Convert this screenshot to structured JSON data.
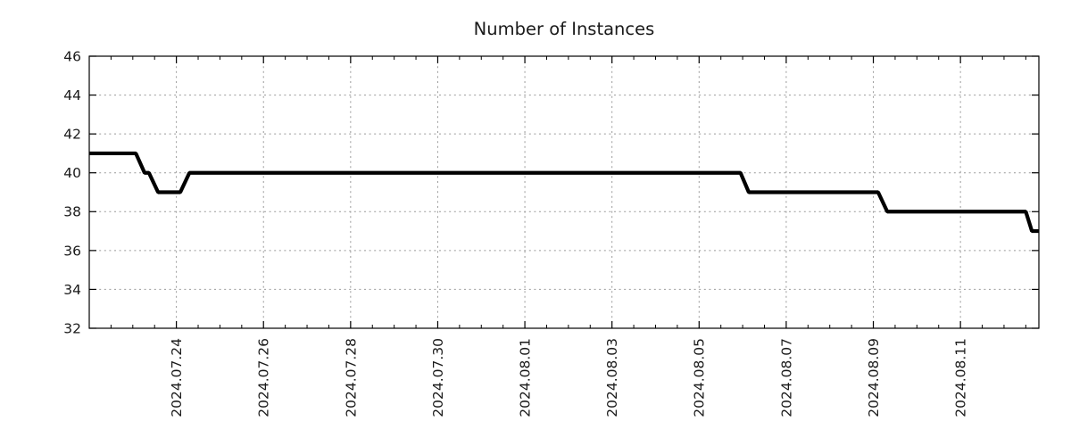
{
  "chart_data": {
    "type": "line",
    "title": "Number of Instances",
    "xlabel": "",
    "ylabel": "",
    "ylim": [
      32,
      46
    ],
    "yticks": [
      32,
      34,
      36,
      38,
      40,
      42,
      44,
      46
    ],
    "xlim_days": [
      0,
      21.8
    ],
    "xticks": [
      {
        "day": 2,
        "label": "2024.07.24"
      },
      {
        "day": 4,
        "label": "2024.07.26"
      },
      {
        "day": 6,
        "label": "2024.07.28"
      },
      {
        "day": 8,
        "label": "2024.07.30"
      },
      {
        "day": 10,
        "label": "2024.08.01"
      },
      {
        "day": 12,
        "label": "2024.08.03"
      },
      {
        "day": 14,
        "label": "2024.08.05"
      },
      {
        "day": 16,
        "label": "2024.08.07"
      },
      {
        "day": 18,
        "label": "2024.08.09"
      },
      {
        "day": 20,
        "label": "2024.08.11"
      }
    ],
    "minor_xtick_interval_days": 0.5,
    "grid": true,
    "legend": "none",
    "colors": {
      "line": "#000000",
      "grid": "#999999",
      "axis": "#000000",
      "text": "#1a1a1a",
      "background": "#ffffff"
    },
    "series": [
      {
        "name": "instances",
        "points": [
          [
            0.0,
            41
          ],
          [
            1.07,
            41
          ],
          [
            1.27,
            40
          ],
          [
            1.37,
            40
          ],
          [
            1.58,
            39
          ],
          [
            2.09,
            39
          ],
          [
            2.3,
            40
          ],
          [
            14.95,
            40
          ],
          [
            15.14,
            39
          ],
          [
            18.11,
            39
          ],
          [
            18.32,
            38
          ],
          [
            21.5,
            38
          ],
          [
            21.64,
            37
          ],
          [
            21.8,
            37
          ]
        ]
      }
    ]
  }
}
